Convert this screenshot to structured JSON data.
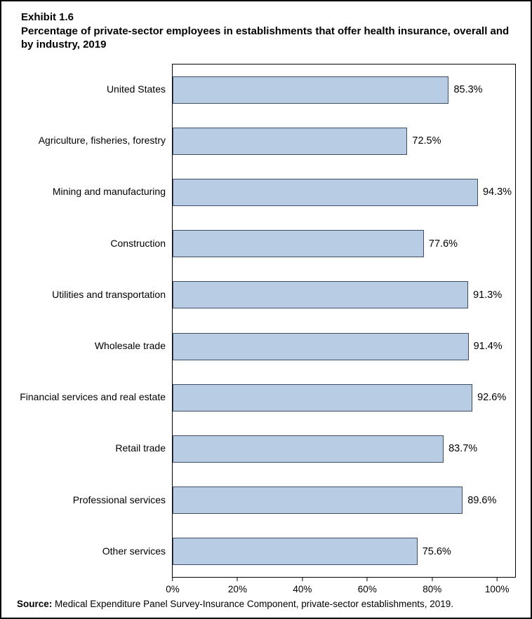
{
  "title": {
    "exhibit": "Exhibit 1.6",
    "text": "Percentage of private-sector employees in establishments that offer health insurance, overall and by industry, 2019"
  },
  "chart_data": {
    "type": "bar",
    "orientation": "horizontal",
    "title": "Percentage of private-sector employees in establishments that offer health insurance, overall and by industry, 2019",
    "categories": [
      "United States",
      "Agriculture, fisheries, forestry",
      "Mining and manufacturing",
      "Construction",
      "Utilities and transportation",
      "Wholesale trade",
      "Financial services and real estate",
      "Retail trade",
      "Professional services",
      "Other services"
    ],
    "values": [
      85.3,
      72.5,
      94.3,
      77.6,
      91.3,
      91.4,
      92.6,
      83.7,
      89.6,
      75.6
    ],
    "value_labels": [
      "85.3%",
      "72.5%",
      "94.3%",
      "77.6%",
      "91.3%",
      "91.4%",
      "92.6%",
      "83.7%",
      "89.6%",
      "75.6%"
    ],
    "x_ticks": [
      "0%",
      "20%",
      "40%",
      "60%",
      "80%",
      "100%"
    ],
    "x_tick_values": [
      0,
      20,
      40,
      60,
      80,
      100
    ],
    "xlim": [
      0,
      105.8
    ],
    "xlabel": "",
    "ylabel": "",
    "grid": false,
    "legend": false,
    "bar_color": "#b8cce4",
    "bar_border_color": "#3f4d63"
  },
  "source": {
    "label": "Source:",
    "text": " Medical Expenditure Panel Survey-Insurance Component, private-sector establishments, 2019."
  }
}
